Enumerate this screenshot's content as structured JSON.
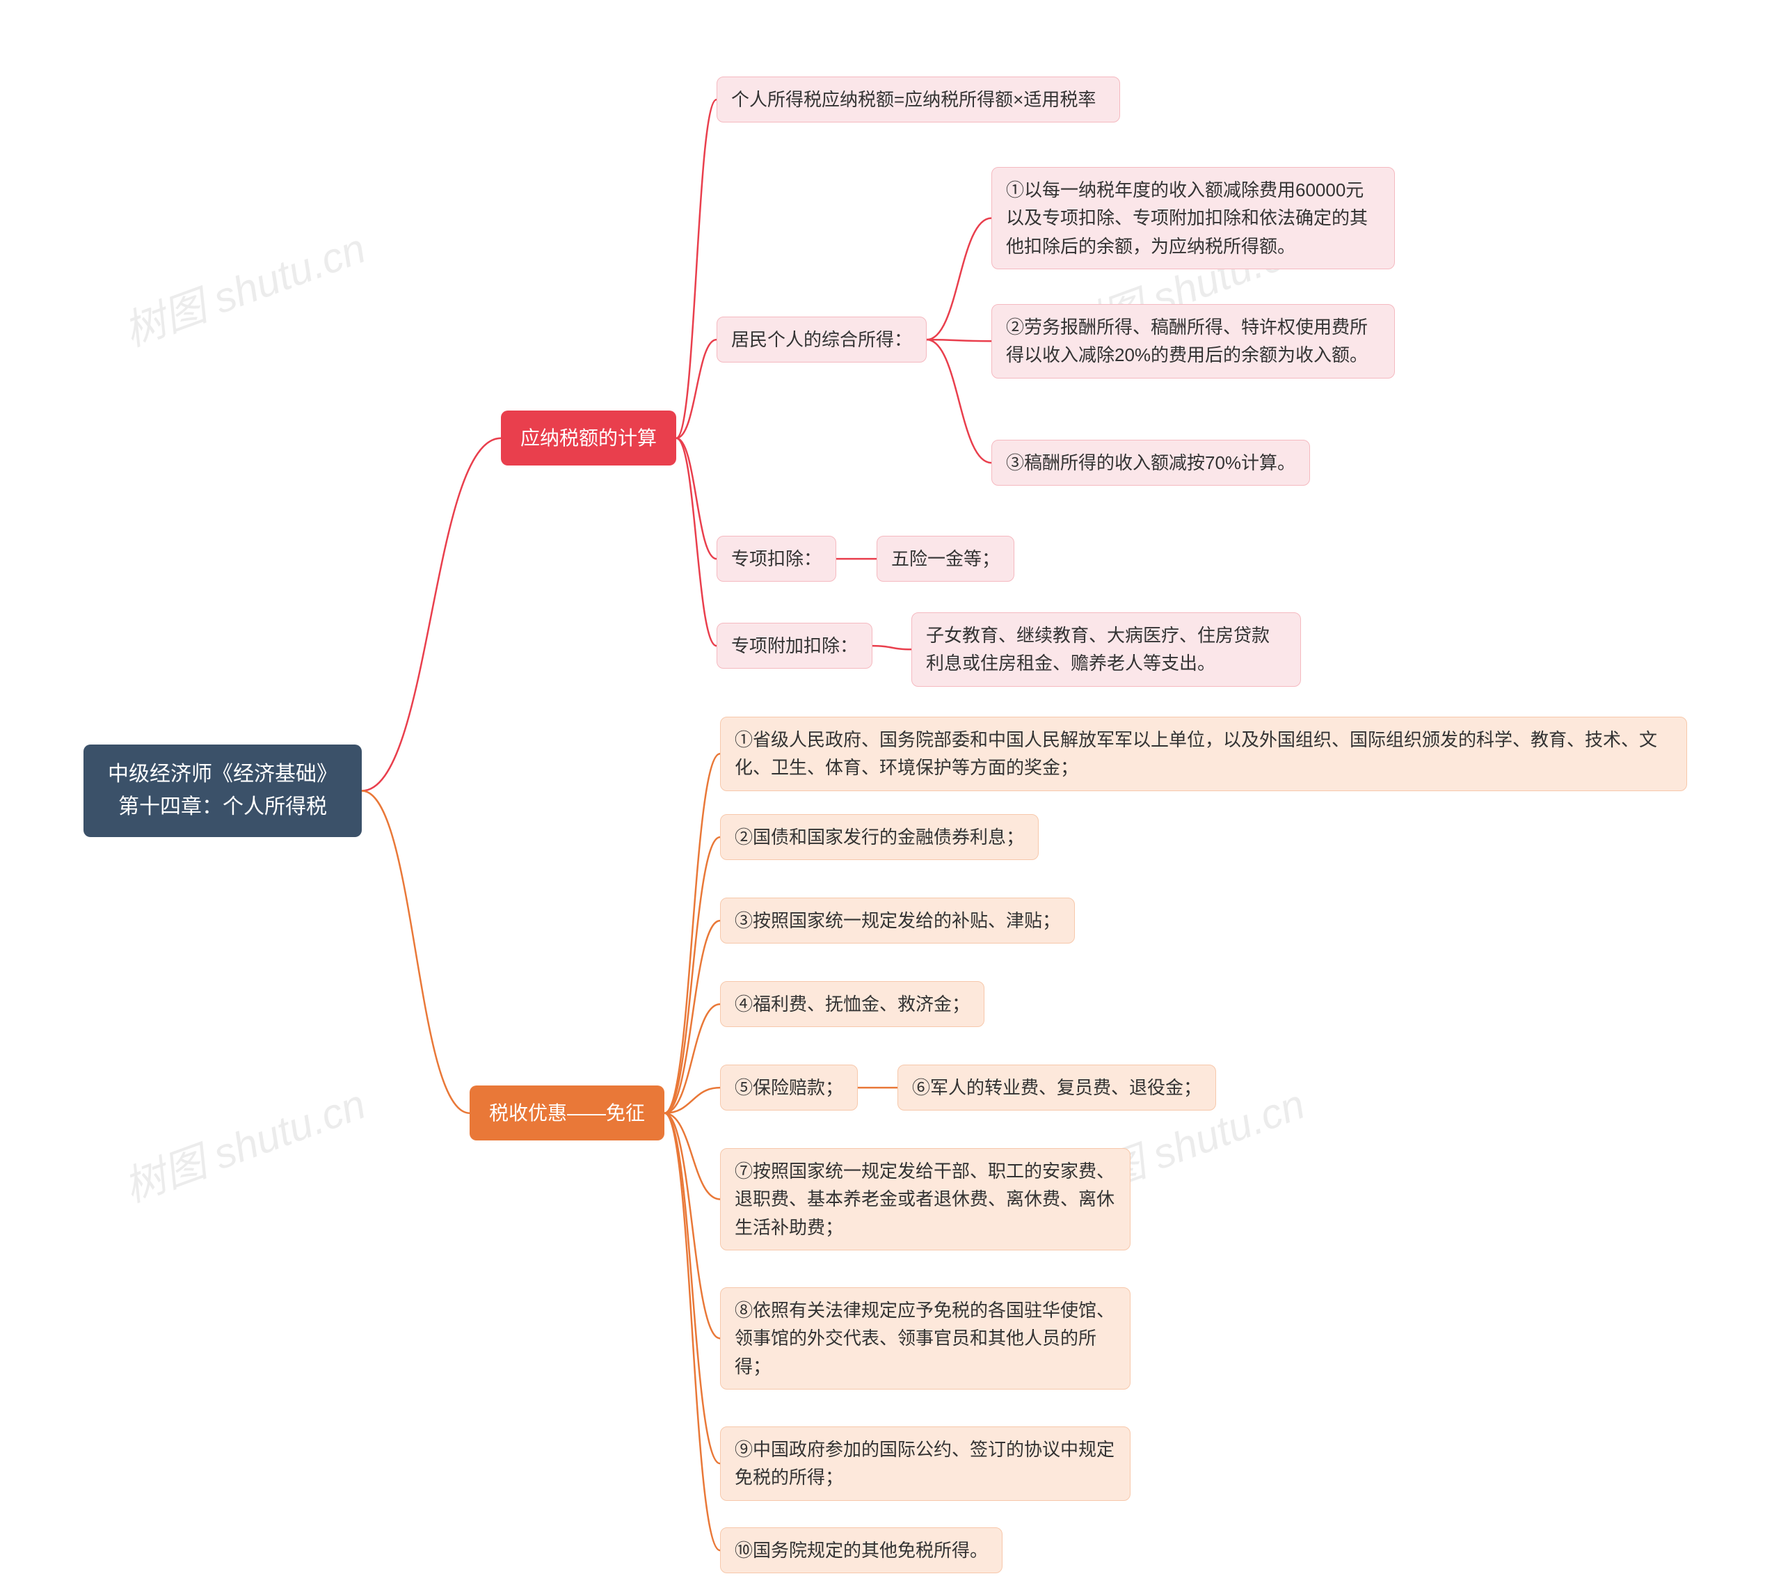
{
  "colors": {
    "root_bg": "#3b5169",
    "red_bg": "#e93f4d",
    "red_leaf_bg": "#fbe6e9",
    "red_leaf_border": "#f5b9c0",
    "orange_bg": "#e97838",
    "orange_leaf_bg": "#fde8db",
    "orange_leaf_border": "#f7c8ab",
    "red_stroke": "#e93f4d",
    "orange_stroke": "#e97838"
  },
  "root": {
    "line1": "中级经济师《经济基础》",
    "line2": "第十四章：个人所得税"
  },
  "b1": {
    "red": "应纳税额的计算",
    "orange": "税收优惠——免征"
  },
  "red": {
    "a": "个人所得税应纳税额=应纳税所得额×适用税率",
    "b_label": "居民个人的综合所得：",
    "b1": "①以每一纳税年度的收入额减除费用60000元以及专项扣除、专项附加扣除和依法确定的其他扣除后的余额，为应纳税所得额。",
    "b2": "②劳务报酬所得、稿酬所得、特许权使用费所得以收入减除20%的费用后的余额为收入额。",
    "b3": "③稿酬所得的收入额减按70%计算。",
    "c_label": "专项扣除：",
    "c_val": "五险一金等；",
    "d_label": "专项附加扣除：",
    "d_val": "子女教育、继续教育、大病医疗、住房贷款利息或住房租金、赡养老人等支出。"
  },
  "orange": {
    "i1": "①省级人民政府、国务院部委和中国人民解放军军以上单位，以及外国组织、国际组织颁发的科学、教育、技术、文化、卫生、体育、环境保护等方面的奖金；",
    "i2": "②国债和国家发行的金融债券利息；",
    "i3": "③按照国家统一规定发给的补贴、津贴；",
    "i4": "④福利费、抚恤金、救济金；",
    "i5": "⑤保险赔款；",
    "i5b": "⑥军人的转业费、复员费、退役金；",
    "i7": "⑦按照国家统一规定发给干部、职工的安家费、退职费、基本养老金或者退休费、离休费、离休生活补助费；",
    "i8": "⑧依照有关法律规定应予免税的各国驻华使馆、领事馆的外交代表、领事官员和其他人员的所得；",
    "i9": "⑨中国政府参加的国际公约、签订的协议中规定免税的所得；",
    "i10": "⑩国务院规定的其他免税所得。"
  },
  "watermark": "树图 shutu.cn"
}
